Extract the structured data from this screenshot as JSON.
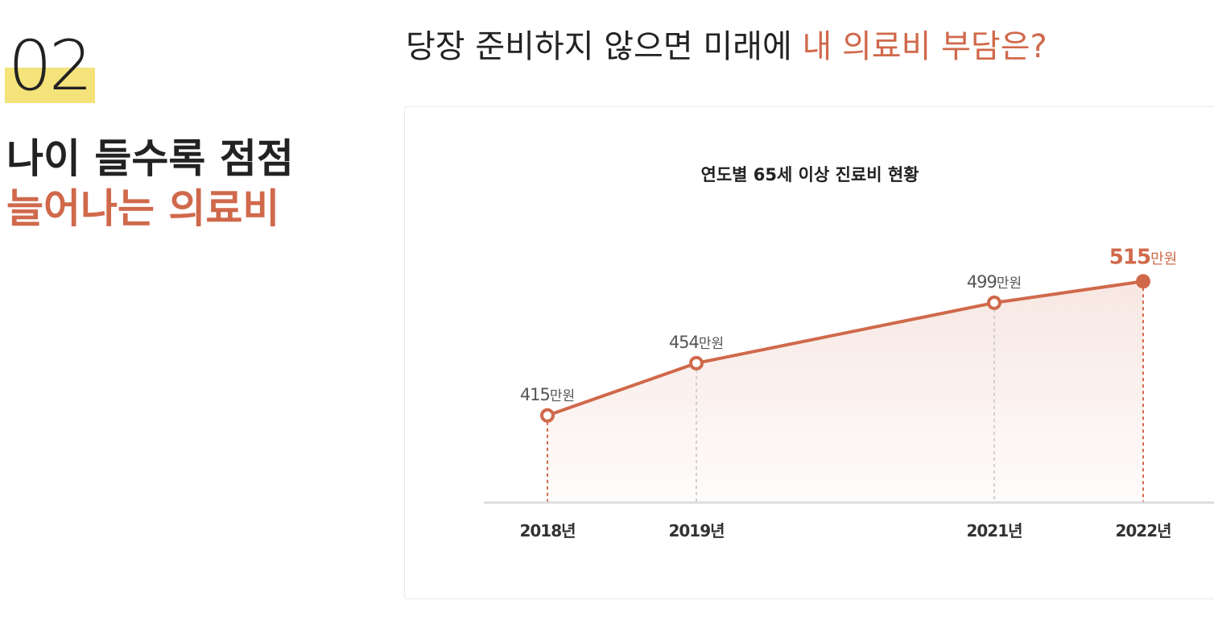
{
  "section": {
    "number": "02"
  },
  "headline": {
    "line1": "나이 들수록 점점",
    "line2": "늘어나는 의료비"
  },
  "page_title": {
    "prefix": "당장 준비하지 않으면 미래에 ",
    "accent": "내 의료비 부담은?"
  },
  "colors": {
    "accent": "#d0694b",
    "highlight": "#f4e27a",
    "text": "#222222"
  },
  "chart_data": {
    "type": "line",
    "title": "연도별 65세 이상 진료비 현황",
    "unit": "만원",
    "categories": [
      "2018년",
      "2019년",
      "2021년",
      "2022년"
    ],
    "x": [
      2018,
      2019,
      2021,
      2022
    ],
    "values": [
      415,
      454,
      499,
      515
    ],
    "ylim": [
      350,
      550
    ],
    "grid": false,
    "area_fill": true,
    "highlight_last": true
  }
}
